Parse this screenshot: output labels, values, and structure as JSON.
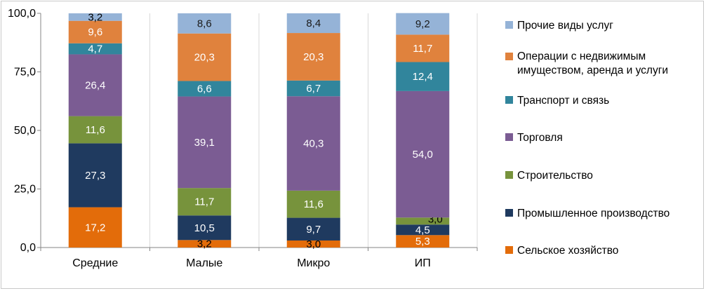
{
  "chart_data": {
    "type": "bar",
    "stacked": true,
    "categories": [
      "Средние",
      "Малые",
      "Микро",
      "ИП"
    ],
    "ylim": [
      0,
      100
    ],
    "yticks": [
      "0,0",
      "25,0",
      "50,0",
      "75,0",
      "100,0"
    ],
    "ytick_values": [
      0,
      25,
      50,
      75,
      100
    ],
    "grid": "vertical",
    "legend_position": "right",
    "series": [
      {
        "name": "Сельское хозяйство",
        "color": "#E36C0A",
        "values": [
          17.2,
          3.2,
          3.0,
          5.3
        ],
        "labels": [
          "17,2",
          "3,2",
          "3,0",
          "5,3"
        ]
      },
      {
        "name": "Промышленное производство",
        "color": "#1F3A5F",
        "values": [
          27.3,
          10.5,
          9.7,
          4.5
        ],
        "labels": [
          "27,3",
          "10,5",
          "9,7",
          "4,5"
        ]
      },
      {
        "name": "Строительство",
        "color": "#77933C",
        "values": [
          11.6,
          11.7,
          11.6,
          3.0
        ],
        "labels": [
          "11,6",
          "11,7",
          "11,6",
          "3,0"
        ]
      },
      {
        "name": "Торговля",
        "color": "#7B5C93",
        "values": [
          26.4,
          39.1,
          40.3,
          54.0
        ],
        "labels": [
          "26,4",
          "39,1",
          "40,3",
          "54,0"
        ]
      },
      {
        "name": "Транспорт и связь",
        "color": "#31859C",
        "values": [
          4.7,
          6.6,
          6.7,
          12.4
        ],
        "labels": [
          "4,7",
          "6,6",
          "6,7",
          "12,4"
        ]
      },
      {
        "name": "Операции с недвижимым имуществом, аренда и услуги",
        "color": "#E0823D",
        "values": [
          9.6,
          20.3,
          20.3,
          11.7
        ],
        "labels": [
          "9,6",
          "20,3",
          "20,3",
          "11,7"
        ]
      },
      {
        "name": "Прочие виды услуг",
        "color": "#95B3D7",
        "values": [
          3.2,
          8.6,
          8.4,
          9.2
        ],
        "labels": [
          "3,2",
          "8,6",
          "8,4",
          "9,2"
        ]
      }
    ],
    "legend_order": [
      6,
      5,
      4,
      3,
      2,
      1,
      0
    ],
    "legend_lines": [
      [
        "Прочие виды услуг"
      ],
      [
        "Операции с недвижимым",
        "имуществом, аренда и услуги"
      ],
      [
        "Транспорт и связь"
      ],
      [
        "Торговля"
      ],
      [
        "Строительство"
      ],
      [
        "Промышленное производство"
      ],
      [
        "Сельское хозяйство"
      ]
    ]
  }
}
